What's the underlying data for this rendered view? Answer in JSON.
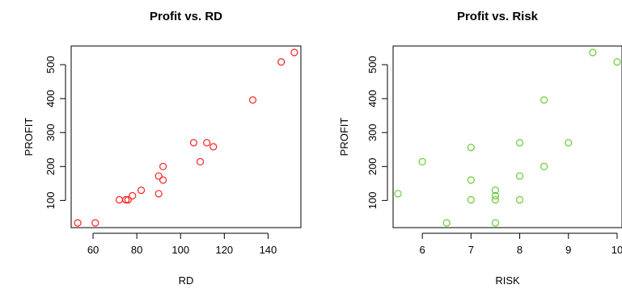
{
  "chart_data": [
    {
      "type": "scatter",
      "title": "Profit vs. RD",
      "xlabel": "RD",
      "ylabel": "PROFIT",
      "xlim": [
        50,
        155
      ],
      "ylim": [
        20,
        555
      ],
      "xticks": [
        "60",
        "80",
        "100",
        "120",
        "140"
      ],
      "yticks": [
        "100",
        "200",
        "300",
        "400",
        "500"
      ],
      "point_color": "#ff2020",
      "grid": false,
      "legend": "none",
      "x": [
        53,
        61,
        72,
        75,
        76,
        78,
        82,
        90,
        90,
        92,
        92,
        106,
        109,
        112,
        115,
        133,
        146,
        152
      ],
      "y": [
        34,
        34,
        102,
        102,
        102,
        114,
        130,
        120,
        172,
        160,
        200,
        270,
        214,
        270,
        258,
        396,
        508,
        536
      ]
    },
    {
      "type": "scatter",
      "title": "Profit vs. Risk",
      "xlabel": "RISK",
      "ylabel": "PROFIT",
      "xlim": [
        5.4,
        10.1
      ],
      "ylim": [
        20,
        555
      ],
      "xticks": [
        "6",
        "7",
        "8",
        "9",
        "10"
      ],
      "yticks": [
        "100",
        "200",
        "300",
        "400",
        "500"
      ],
      "point_color": "#66cc33",
      "grid": false,
      "legend": "none",
      "x": [
        5.5,
        6.0,
        6.5,
        7.0,
        7.0,
        7.0,
        7.5,
        7.5,
        7.5,
        7.5,
        8.0,
        8.0,
        8.0,
        8.5,
        8.5,
        9.0,
        9.5,
        10.0
      ],
      "y": [
        120,
        214,
        34,
        256,
        160,
        102,
        130,
        114,
        102,
        34,
        270,
        172,
        102,
        396,
        200,
        270,
        536,
        508
      ]
    }
  ]
}
